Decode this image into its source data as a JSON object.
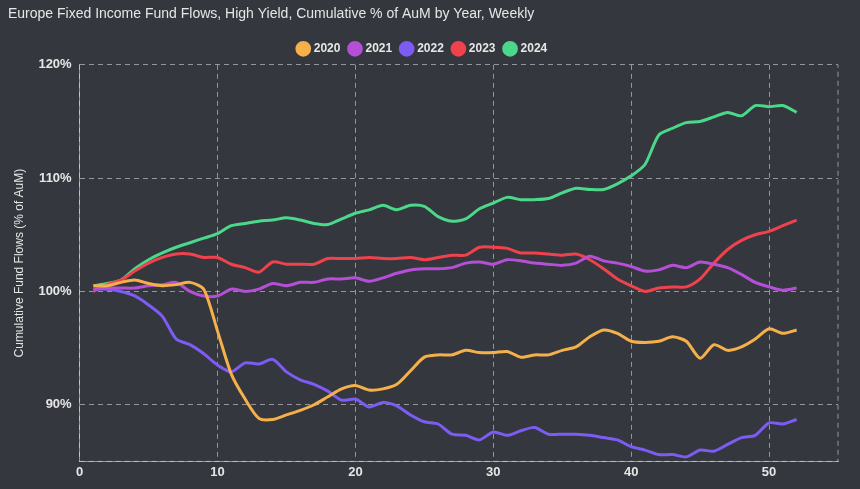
{
  "chart_data": {
    "type": "line",
    "title": "Europe Fixed Income Fund Flows, High Yield, Cumulative % of AuM by Year, Weekly",
    "y_label": "Cumulative Fund Flows (% of AuM)",
    "x": [
      1,
      2,
      3,
      4,
      5,
      6,
      7,
      8,
      9,
      10,
      11,
      12,
      13,
      14,
      15,
      16,
      17,
      18,
      19,
      20,
      21,
      22,
      23,
      24,
      25,
      26,
      27,
      28,
      29,
      30,
      31,
      32,
      33,
      34,
      35,
      36,
      37,
      38,
      39,
      40,
      41,
      42,
      43,
      44,
      45,
      46,
      47,
      48,
      49,
      50,
      51,
      52
    ],
    "series": [
      {
        "name": "2020",
        "color": "#f6b04a",
        "values": [
          100.5,
          100.5,
          100.8,
          101,
          100.7,
          100.5,
          100.6,
          100.8,
          100.2,
          96.5,
          92.7,
          90.5,
          88.8,
          88.7,
          89.1,
          89.5,
          90,
          90.7,
          91.4,
          91.7,
          91.3,
          91.4,
          91.8,
          93,
          94.2,
          94.4,
          94.4,
          94.8,
          94.6,
          94.6,
          94.7,
          94.2,
          94.4,
          94.4,
          94.8,
          95.1,
          96,
          96.6,
          96.3,
          95.6,
          95.5,
          95.6,
          96,
          95.6,
          94.1,
          95.3,
          94.8,
          95.1,
          95.8,
          96.7,
          96.3,
          96.6
        ]
      },
      {
        "name": "2021",
        "color": "#b44fd6",
        "values": [
          100.2,
          100.3,
          100.3,
          100.3,
          100.5,
          100.6,
          100.8,
          100,
          99.6,
          99.6,
          100.2,
          100,
          100.2,
          100.7,
          100.5,
          100.8,
          100.8,
          101.1,
          101.1,
          101.2,
          100.9,
          101.2,
          101.6,
          101.9,
          102,
          102,
          102.1,
          102.5,
          102.6,
          102.4,
          102.8,
          102.7,
          102.5,
          102.4,
          102.3,
          102.5,
          103.1,
          102.7,
          102.5,
          102.2,
          101.8,
          101.9,
          102.3,
          102.1,
          102.6,
          102.4,
          102.1,
          101.5,
          100.8,
          100.4,
          100.1,
          100.3
        ]
      },
      {
        "name": "2022",
        "color": "#7c5cf2",
        "values": [
          100.2,
          100.2,
          100,
          99.6,
          98.8,
          97.8,
          95.8,
          95.3,
          94.5,
          93.5,
          92.9,
          93.7,
          93.6,
          94,
          92.9,
          92.2,
          91.8,
          91.2,
          90.4,
          90.5,
          89.8,
          90.2,
          89.9,
          89.1,
          88.5,
          88.3,
          87.4,
          87.3,
          86.9,
          87.6,
          87.3,
          87.7,
          88,
          87.4,
          87.4,
          87.4,
          87.3,
          87.1,
          86.9,
          86.3,
          86,
          85.6,
          85.6,
          85.4,
          86,
          85.9,
          86.5,
          87.1,
          87.3,
          88.4,
          88.3,
          88.7
        ]
      },
      {
        "name": "2023",
        "color": "#f0424d",
        "values": [
          100,
          100.6,
          101,
          101.8,
          102.5,
          103,
          103.3,
          103.3,
          103,
          103,
          102.4,
          102.1,
          101.7,
          102.6,
          102.4,
          102.4,
          102.4,
          102.9,
          102.9,
          102.9,
          103,
          102.9,
          102.9,
          103,
          102.8,
          103,
          103.2,
          103.2,
          103.9,
          103.9,
          103.8,
          103.4,
          103.4,
          103.3,
          103.2,
          103.3,
          102.8,
          102,
          101.1,
          100.5,
          100,
          100.3,
          100.4,
          100.4,
          101.1,
          102.5,
          103.7,
          104.5,
          105,
          105.3,
          105.8,
          106.3
        ]
      },
      {
        "name": "2024",
        "color": "#4cd88a",
        "values": [
          100.5,
          100.7,
          101,
          102,
          102.8,
          103.4,
          103.9,
          104.3,
          104.7,
          105.1,
          105.8,
          106,
          106.2,
          106.3,
          106.5,
          106.3,
          106,
          105.9,
          106.4,
          106.9,
          107.2,
          107.6,
          107.2,
          107.6,
          107.5,
          106.6,
          106.2,
          106.4,
          107.3,
          107.8,
          108.3,
          108.1,
          108.1,
          108.2,
          108.7,
          109.1,
          109,
          109,
          109.5,
          110.2,
          111.2,
          113.8,
          114.4,
          114.9,
          115,
          115.4,
          115.8,
          115.5,
          116.4,
          116.3,
          116.4,
          115.8
        ]
      }
    ],
    "xlim": [
      0,
      55
    ],
    "xticks": [
      0,
      10,
      20,
      30,
      40,
      50
    ],
    "ylim": [
      85,
      120
    ],
    "yticks": [
      {
        "value": 90,
        "label": "90%"
      },
      {
        "value": 100,
        "label": "100%"
      },
      {
        "value": 110,
        "label": "110%"
      },
      {
        "value": 120,
        "label": "120%"
      }
    ],
    "grid": true,
    "legend": "top"
  }
}
